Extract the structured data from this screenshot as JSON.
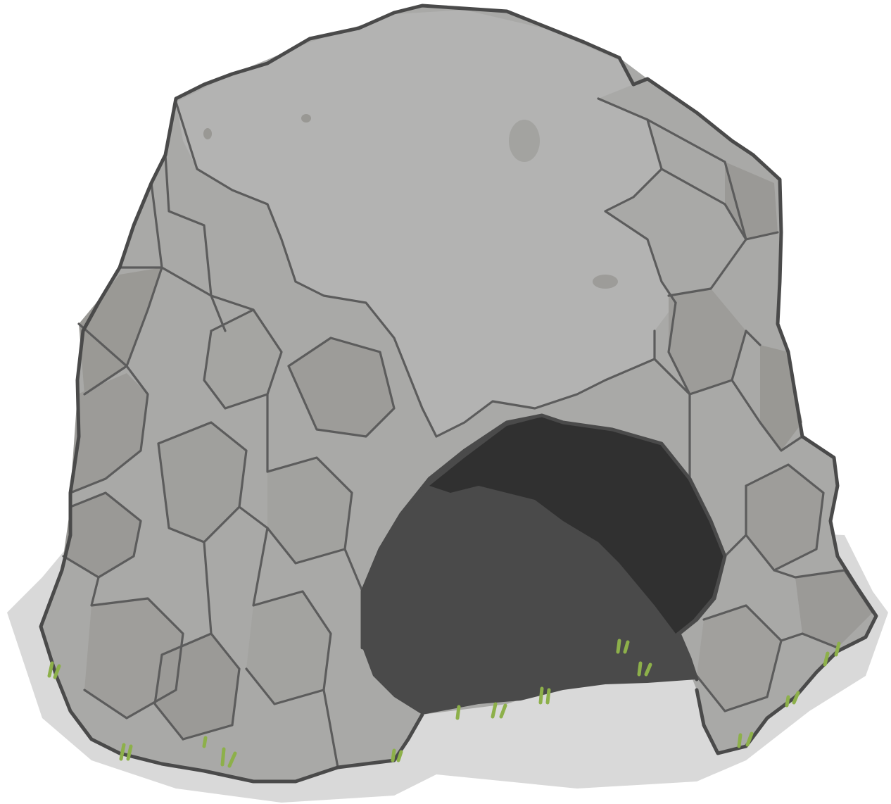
{
  "scene": {
    "subject": "rock-cave-illustration",
    "colors": {
      "background": "#ffffff",
      "shadow": "#d9d9d9",
      "rock_light": "#b0b0b0",
      "rock_mid": "#a3a3a1",
      "rock_dark": "#989793",
      "outline": "#4a4a4a",
      "crack": "#5c5c5c",
      "cave_interior": "#4a4a4a",
      "cave_deep": "#303030",
      "grass": "#8db04a"
    },
    "elements": [
      "ground-shadow",
      "rock-mound",
      "rock-facets",
      "cave-opening",
      "grass-tufts"
    ]
  }
}
